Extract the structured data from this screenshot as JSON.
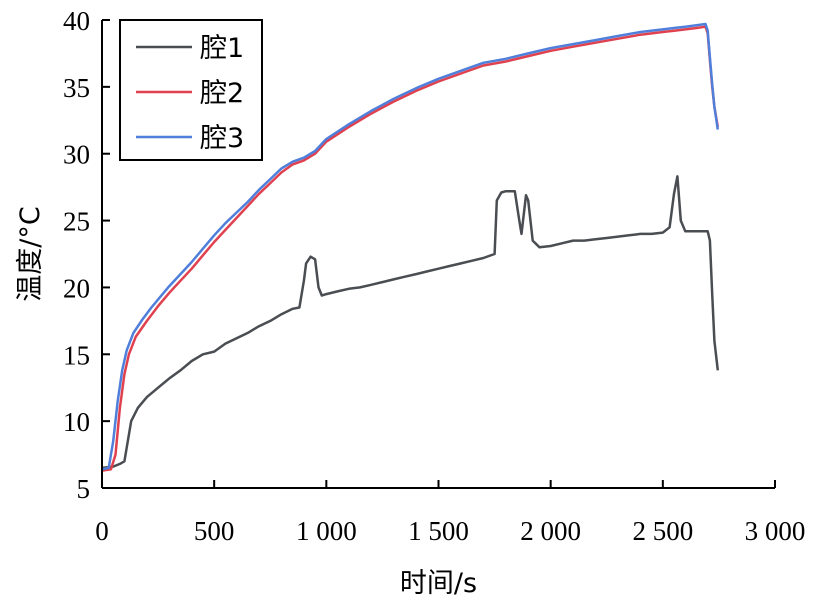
{
  "chart_data": {
    "type": "line",
    "xlabel": "时间/s",
    "ylabel": "温度/°C",
    "xlim": [
      0,
      3000
    ],
    "ylim": [
      5,
      40
    ],
    "xticks": [
      0,
      500,
      1000,
      1500,
      2000,
      2500,
      3000
    ],
    "xtick_labels": [
      "0",
      "500",
      "1 000",
      "1 500",
      "2 000",
      "2 500",
      "3 000"
    ],
    "yticks": [
      5,
      10,
      15,
      20,
      25,
      30,
      35,
      40
    ],
    "ytick_labels": [
      "5",
      "10",
      "15",
      "20",
      "25",
      "30",
      "35",
      "40"
    ],
    "grid": false,
    "legend_position": "top-left",
    "series": [
      {
        "name": "腔1",
        "color": "#4a4d52",
        "x": [
          0,
          50,
          80,
          100,
          130,
          160,
          200,
          250,
          300,
          350,
          400,
          450,
          500,
          550,
          600,
          650,
          700,
          750,
          800,
          850,
          880,
          900,
          910,
          930,
          950,
          965,
          980,
          1000,
          1050,
          1100,
          1150,
          1200,
          1250,
          1300,
          1350,
          1400,
          1450,
          1500,
          1550,
          1600,
          1650,
          1700,
          1750,
          1760,
          1780,
          1800,
          1840,
          1860,
          1870,
          1890,
          1900,
          1920,
          1950,
          2000,
          2050,
          2100,
          2150,
          2200,
          2250,
          2300,
          2350,
          2400,
          2450,
          2500,
          2530,
          2550,
          2565,
          2580,
          2600,
          2650,
          2700,
          2710,
          2720,
          2730,
          2745
        ],
        "y": [
          6.5,
          6.6,
          6.8,
          7.0,
          10.0,
          11.0,
          11.8,
          12.5,
          13.2,
          13.8,
          14.5,
          15.0,
          15.2,
          15.8,
          16.2,
          16.6,
          17.1,
          17.5,
          18.0,
          18.4,
          18.5,
          20.5,
          21.8,
          22.3,
          22.1,
          20.0,
          19.4,
          19.5,
          19.7,
          19.9,
          20.0,
          20.2,
          20.4,
          20.6,
          20.8,
          21.0,
          21.2,
          21.4,
          21.6,
          21.8,
          22.0,
          22.2,
          22.5,
          26.5,
          27.1,
          27.2,
          27.2,
          25.0,
          24.0,
          26.9,
          26.5,
          23.5,
          23.0,
          23.1,
          23.3,
          23.5,
          23.5,
          23.6,
          23.7,
          23.8,
          23.9,
          24.0,
          24.0,
          24.1,
          24.5,
          27.0,
          28.3,
          25.0,
          24.2,
          24.2,
          24.2,
          23.5,
          19.5,
          16.0,
          13.8
        ]
      },
      {
        "name": "腔2",
        "color": "#e0414f",
        "x": [
          0,
          40,
          60,
          80,
          100,
          120,
          150,
          200,
          250,
          300,
          350,
          400,
          450,
          500,
          550,
          600,
          650,
          700,
          750,
          800,
          850,
          900,
          950,
          1000,
          1100,
          1200,
          1300,
          1400,
          1500,
          1600,
          1700,
          1800,
          1900,
          2000,
          2100,
          2200,
          2300,
          2400,
          2500,
          2550,
          2600,
          2650,
          2690,
          2700,
          2710,
          2720,
          2730,
          2745
        ],
        "y": [
          6.3,
          6.4,
          7.5,
          11.0,
          13.5,
          15.0,
          16.3,
          17.5,
          18.6,
          19.6,
          20.5,
          21.4,
          22.4,
          23.4,
          24.3,
          25.2,
          26.1,
          27.0,
          27.8,
          28.6,
          29.2,
          29.5,
          30.0,
          30.9,
          32.0,
          33.0,
          33.9,
          34.7,
          35.4,
          36.0,
          36.6,
          36.9,
          37.3,
          37.7,
          38.0,
          38.3,
          38.6,
          38.9,
          39.1,
          39.2,
          39.3,
          39.4,
          39.5,
          39.0,
          37.0,
          35.0,
          33.5,
          32.0
        ]
      },
      {
        "name": "腔3",
        "color": "#4f7fda",
        "x": [
          0,
          30,
          50,
          70,
          90,
          110,
          140,
          180,
          220,
          260,
          300,
          350,
          400,
          450,
          500,
          550,
          600,
          650,
          700,
          750,
          800,
          850,
          900,
          950,
          1000,
          1100,
          1200,
          1300,
          1400,
          1500,
          1600,
          1700,
          1800,
          1900,
          2000,
          2100,
          2200,
          2300,
          2400,
          2500,
          2550,
          2600,
          2650,
          2690,
          2700,
          2710,
          2720,
          2730,
          2745
        ],
        "y": [
          6.4,
          6.5,
          8.5,
          11.5,
          13.8,
          15.3,
          16.6,
          17.6,
          18.5,
          19.3,
          20.1,
          21.0,
          21.9,
          22.9,
          23.9,
          24.8,
          25.6,
          26.4,
          27.3,
          28.1,
          28.9,
          29.4,
          29.7,
          30.2,
          31.1,
          32.2,
          33.2,
          34.1,
          34.9,
          35.6,
          36.2,
          36.8,
          37.1,
          37.5,
          37.9,
          38.2,
          38.5,
          38.8,
          39.1,
          39.3,
          39.4,
          39.5,
          39.6,
          39.7,
          39.2,
          37.2,
          35.2,
          33.5,
          31.8
        ]
      }
    ]
  }
}
